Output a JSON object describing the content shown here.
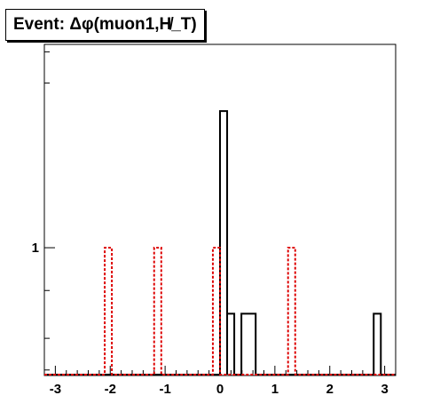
{
  "title": "Event: Δφ(muon1,H̸_T)",
  "chart_data": {
    "type": "histogram",
    "title": "Event: Δφ(muon1,H̸_T)",
    "xlabel": "",
    "ylabel": "",
    "xlim": [
      -3.2,
      3.2
    ],
    "ylim": [
      0.73,
      1.65
    ],
    "y_scale": "log",
    "x_ticks": [
      "-3",
      "-2",
      "-1",
      "0",
      "1",
      "2",
      "3"
    ],
    "x_tick_values": [
      -3,
      -2,
      -1,
      0,
      1,
      2,
      3
    ],
    "y_ticks": [
      "1"
    ],
    "y_tick_values": [
      1
    ],
    "grid": false,
    "legend": "none",
    "series": [
      {
        "color": "#000000",
        "style": "solid",
        "bins": [
          {
            "x0": 0.0,
            "x1": 0.13,
            "y": 1.4
          },
          {
            "x0": 0.13,
            "x1": 0.26,
            "y": 0.85
          },
          {
            "x0": 0.39,
            "x1": 0.65,
            "y": 0.85
          },
          {
            "x0": 2.8,
            "x1": 2.93,
            "y": 0.85
          }
        ]
      },
      {
        "color": "#dd0000",
        "style": "dotted",
        "bins": [
          {
            "x0": -2.1,
            "x1": -1.97,
            "y": 1.0
          },
          {
            "x0": -1.2,
            "x1": -1.07,
            "y": 1.0
          },
          {
            "x0": -0.13,
            "x1": 0.0,
            "y": 1.0
          },
          {
            "x0": 1.24,
            "x1": 1.37,
            "y": 1.0
          }
        ]
      }
    ]
  }
}
